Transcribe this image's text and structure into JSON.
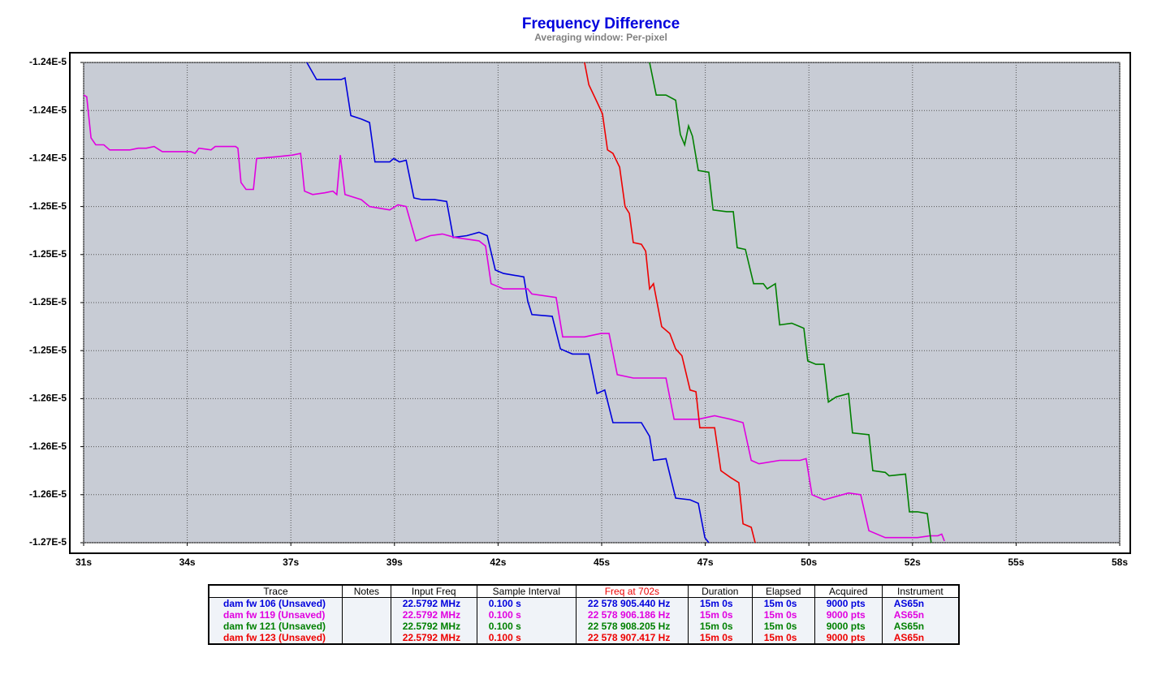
{
  "chart_data": {
    "type": "line",
    "title": "Frequency Difference",
    "subtitle": "Averaging window: Per-pixel",
    "xlim": [
      31.2,
      57.8
    ],
    "xticks": [
      {
        "value": 31.2,
        "label": "31s"
      },
      {
        "value": 33.86,
        "label": "34s"
      },
      {
        "value": 36.52,
        "label": "37s"
      },
      {
        "value": 39.18,
        "label": "39s"
      },
      {
        "value": 41.84,
        "label": "42s"
      },
      {
        "value": 44.5,
        "label": "45s"
      },
      {
        "value": 47.16,
        "label": "47s"
      },
      {
        "value": 49.82,
        "label": "50s"
      },
      {
        "value": 52.48,
        "label": "52s"
      },
      {
        "value": 55.14,
        "label": "55s"
      },
      {
        "value": 57.8,
        "label": "58s"
      }
    ],
    "ylim": [
      -1.2655e-05,
      -1.2375e-05
    ],
    "yticks": [
      {
        "value": -1.2375e-05,
        "label": "-1.24E-5"
      },
      {
        "value": -1.2403e-05,
        "label": "-1.24E-5"
      },
      {
        "value": -1.2431e-05,
        "label": "-1.24E-5"
      },
      {
        "value": -1.2459e-05,
        "label": "-1.25E-5"
      },
      {
        "value": -1.2487e-05,
        "label": "-1.25E-5"
      },
      {
        "value": -1.2515e-05,
        "label": "-1.25E-5"
      },
      {
        "value": -1.2543e-05,
        "label": "-1.25E-5"
      },
      {
        "value": -1.2571e-05,
        "label": "-1.26E-5"
      },
      {
        "value": -1.2599e-05,
        "label": "-1.26E-5"
      },
      {
        "value": -1.2627e-05,
        "label": "-1.26E-5"
      },
      {
        "value": -1.2655e-05,
        "label": "-1.27E-5"
      }
    ],
    "grid": true,
    "series": [
      {
        "name": "dam fw 106 (Unsaved)",
        "color": "#0000dd",
        "x": [
          36.93,
          37.18,
          37.81,
          37.91,
          38.06,
          38.33,
          38.54,
          38.68,
          39.06,
          39.16,
          39.31,
          39.48,
          39.68,
          39.89,
          40.21,
          40.52,
          40.69,
          41.04,
          41.35,
          41.56,
          41.77,
          41.98,
          42.5,
          42.6,
          42.71,
          43.23,
          43.44,
          43.75,
          44.17,
          44.38,
          44.58,
          44.79,
          45.52,
          45.73,
          45.83,
          46.15,
          46.4,
          46.77,
          46.98,
          47.15,
          47.25
        ],
        "values": [
          -1.2375e-05,
          -1.2385e-05,
          -1.2385e-05,
          -1.2384e-05,
          -1.2406e-05,
          -1.2408e-05,
          -1.241e-05,
          -1.2433e-05,
          -1.2433e-05,
          -1.2431e-05,
          -1.2433e-05,
          -1.2432e-05,
          -1.2454e-05,
          -1.2455e-05,
          -1.2455e-05,
          -1.2456e-05,
          -1.2477e-05,
          -1.2476e-05,
          -1.2474e-05,
          -1.2476e-05,
          -1.2496e-05,
          -1.2498e-05,
          -1.25e-05,
          -1.2514e-05,
          -1.2522e-05,
          -1.2523e-05,
          -1.2542e-05,
          -1.2545e-05,
          -1.2545e-05,
          -1.2568e-05,
          -1.2566e-05,
          -1.2585e-05,
          -1.2585e-05,
          -1.2593e-05,
          -1.2607e-05,
          -1.2606e-05,
          -1.2629e-05,
          -1.263e-05,
          -1.2632e-05,
          -1.2652e-05,
          -1.2655e-05
        ]
      },
      {
        "name": "dam fw 119 (Unsaved)",
        "color": "#e000e0",
        "x": [
          31.2,
          31.28,
          31.39,
          31.51,
          31.72,
          31.87,
          32.39,
          32.6,
          32.81,
          33.01,
          33.22,
          33.95,
          34.06,
          34.16,
          34.47,
          34.58,
          35.1,
          35.16,
          35.24,
          35.37,
          35.56,
          35.64,
          36.14,
          36.56,
          36.77,
          36.87,
          37.08,
          37.39,
          37.6,
          37.7,
          37.79,
          37.91,
          38.33,
          38.54,
          39.06,
          39.27,
          39.48,
          39.73,
          40.1,
          40.41,
          40.73,
          41.35,
          41.52,
          41.66,
          41.98,
          42.6,
          42.71,
          43.33,
          43.5,
          44.06,
          44.48,
          44.69,
          44.9,
          45.31,
          46.15,
          46.36,
          46.98,
          47.4,
          47.81,
          48.13,
          48.34,
          48.54,
          49.07,
          49.59,
          49.75,
          49.9,
          50.21,
          50.84,
          51.15,
          51.36,
          51.78,
          52.61,
          52.92,
          53.13,
          53.23,
          53.3
        ],
        "values": [
          -1.2394e-05,
          -1.2395e-05,
          -1.2419e-05,
          -1.2423e-05,
          -1.2423e-05,
          -1.2426e-05,
          -1.2426e-05,
          -1.2425e-05,
          -1.2425e-05,
          -1.2424e-05,
          -1.2427e-05,
          -1.2427e-05,
          -1.2428e-05,
          -1.2425e-05,
          -1.2426e-05,
          -1.2424e-05,
          -1.2424e-05,
          -1.2425e-05,
          -1.2445e-05,
          -1.2449e-05,
          -1.2449e-05,
          -1.2431e-05,
          -1.243e-05,
          -1.2429e-05,
          -1.2428e-05,
          -1.245e-05,
          -1.2452e-05,
          -1.2451e-05,
          -1.245e-05,
          -1.2452e-05,
          -1.2429e-05,
          -1.2452e-05,
          -1.2455e-05,
          -1.2459e-05,
          -1.2461e-05,
          -1.2458e-05,
          -1.2459e-05,
          -1.2479e-05,
          -1.2476e-05,
          -1.2475e-05,
          -1.2477e-05,
          -1.2479e-05,
          -1.2482e-05,
          -1.2504e-05,
          -1.2507e-05,
          -1.2507e-05,
          -1.251e-05,
          -1.2512e-05,
          -1.2535e-05,
          -1.2535e-05,
          -1.2533e-05,
          -1.2533e-05,
          -1.2557e-05,
          -1.2559e-05,
          -1.2559e-05,
          -1.2583e-05,
          -1.2583e-05,
          -1.2581e-05,
          -1.2583e-05,
          -1.2585e-05,
          -1.2607e-05,
          -1.2609e-05,
          -1.2607e-05,
          -1.2607e-05,
          -1.2606e-05,
          -1.2627e-05,
          -1.263e-05,
          -1.2626e-05,
          -1.2627e-05,
          -1.2648e-05,
          -1.2652e-05,
          -1.2652e-05,
          -1.2651e-05,
          -1.2651e-05,
          -1.265e-05,
          -1.2654e-05
        ]
      },
      {
        "name": "dam fw 121 (Unsaved)",
        "color": "#008000",
        "x": [
          45.73,
          45.9,
          46.15,
          46.4,
          46.52,
          46.63,
          46.73,
          46.83,
          46.98,
          47.25,
          47.36,
          47.71,
          47.88,
          47.98,
          48.19,
          48.4,
          48.65,
          48.75,
          48.96,
          49.07,
          49.38,
          49.59,
          49.69,
          49.79,
          50.0,
          50.21,
          50.32,
          50.52,
          50.84,
          50.94,
          51.36,
          51.46,
          51.78,
          51.88,
          52.3,
          52.4,
          52.61,
          52.86,
          52.96
        ],
        "values": [
          -1.2375e-05,
          -1.2394e-05,
          -1.2394e-05,
          -1.2397e-05,
          -1.2417e-05,
          -1.2423e-05,
          -1.2412e-05,
          -1.2418e-05,
          -1.2438e-05,
          -1.2439e-05,
          -1.2461e-05,
          -1.2462e-05,
          -1.2462e-05,
          -1.2483e-05,
          -1.2484e-05,
          -1.2504e-05,
          -1.2504e-05,
          -1.2507e-05,
          -1.2504e-05,
          -1.2528e-05,
          -1.2527e-05,
          -1.2529e-05,
          -1.253e-05,
          -1.2549e-05,
          -1.2551e-05,
          -1.2551e-05,
          -1.2573e-05,
          -1.257e-05,
          -1.2568e-05,
          -1.2591e-05,
          -1.2592e-05,
          -1.2613e-05,
          -1.2614e-05,
          -1.2616e-05,
          -1.2615e-05,
          -1.2637e-05,
          -1.2637e-05,
          -1.2638e-05,
          -1.2655e-05
        ]
      },
      {
        "name": "dam fw 123 (Unsaved)",
        "color": "#ee0000",
        "x": [
          44.06,
          44.17,
          44.38,
          44.52,
          44.65,
          44.79,
          44.96,
          45.1,
          45.21,
          45.31,
          45.52,
          45.63,
          45.73,
          45.83,
          46.04,
          46.25,
          46.4,
          46.56,
          46.77,
          46.92,
          47.02,
          47.4,
          47.56,
          47.81,
          48.02,
          48.13,
          48.34,
          48.44
        ],
        "values": [
          -1.2375e-05,
          -1.2388e-05,
          -1.2398e-05,
          -1.2405e-05,
          -1.2426e-05,
          -1.2428e-05,
          -1.2436e-05,
          -1.2459e-05,
          -1.2463e-05,
          -1.248e-05,
          -1.2481e-05,
          -1.2485e-05,
          -1.2507e-05,
          -1.2504e-05,
          -1.2529e-05,
          -1.2533e-05,
          -1.2542e-05,
          -1.2546e-05,
          -1.2566e-05,
          -1.2567e-05,
          -1.2588e-05,
          -1.2588e-05,
          -1.2613e-05,
          -1.2617e-05,
          -1.262e-05,
          -1.2644e-05,
          -1.2646e-05,
          -1.2655e-05
        ]
      }
    ]
  },
  "table": {
    "columns": [
      "Trace",
      "Notes",
      "Input Freq",
      "Sample Interval",
      "Freq at 702s",
      "Duration",
      "Elapsed",
      "Acquired",
      "Instrument"
    ],
    "highlight_column_color": "#ee0000",
    "rows": [
      [
        "dam fw 106 (Unsaved)",
        "",
        "22.5792 MHz",
        "0.100 s",
        "22 578 905.440 Hz",
        "15m 0s",
        "15m 0s",
        "9000 pts",
        "AS65n"
      ],
      [
        "dam fw 119 (Unsaved)",
        "",
        "22.5792 MHz",
        "0.100 s",
        "22 578 906.186 Hz",
        "15m 0s",
        "15m 0s",
        "9000 pts",
        "AS65n"
      ],
      [
        "dam fw 121 (Unsaved)",
        "",
        "22.5792 MHz",
        "0.100 s",
        "22 578 908.205 Hz",
        "15m 0s",
        "15m 0s",
        "9000 pts",
        "AS65n"
      ],
      [
        "dam fw 123 (Unsaved)",
        "",
        "22.5792 MHz",
        "0.100 s",
        "22 578 907.417 Hz",
        "15m 0s",
        "15m 0s",
        "9000 pts",
        "AS65n"
      ]
    ]
  }
}
